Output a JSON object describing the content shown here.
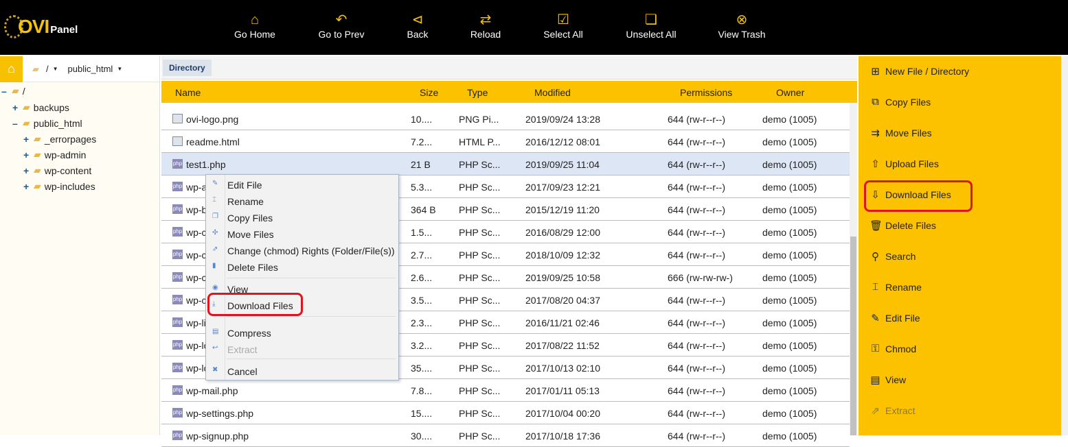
{
  "brand": {
    "logo_text": "OVIPanel"
  },
  "toolbar": [
    {
      "label": "Go Home",
      "icon": "home-icon"
    },
    {
      "label": "Go to Prev",
      "icon": "undo-arrow-icon"
    },
    {
      "label": "Back",
      "icon": "circle-chevron-left-icon"
    },
    {
      "label": "Reload",
      "icon": "reload-icon"
    },
    {
      "label": "Select All",
      "icon": "check-square-icon"
    },
    {
      "label": "Unselect All",
      "icon": "square-icon"
    },
    {
      "label": "View Trash",
      "icon": "trash-x-icon"
    }
  ],
  "breadcrumb": {
    "root": "/",
    "current": "public_html"
  },
  "tree": [
    {
      "label": "/",
      "toggle": "-",
      "level": 0
    },
    {
      "label": "backups",
      "toggle": "+",
      "level": 1
    },
    {
      "label": "public_html",
      "toggle": "-",
      "level": 1
    },
    {
      "label": "_errorpages",
      "toggle": "+",
      "level": 2
    },
    {
      "label": "wp-admin",
      "toggle": "+",
      "level": 2
    },
    {
      "label": "wp-content",
      "toggle": "+",
      "level": 2
    },
    {
      "label": "wp-includes",
      "toggle": "+",
      "level": 2
    }
  ],
  "directory_tab": "Directory",
  "columns": {
    "name": "Name",
    "size": "Size",
    "type": "Type",
    "modified": "Modified",
    "permissions": "Permissions",
    "owner": "Owner"
  },
  "files": [
    {
      "name": "ovi-logo.png",
      "size": "10....",
      "type": "PNG Pi...",
      "modified": "2019/09/24 13:28",
      "permissions": "644 (rw-r--r--)",
      "owner": "demo (1005)",
      "icon": "image"
    },
    {
      "name": "readme.html",
      "size": "7.2...",
      "type": "HTML P...",
      "modified": "2016/12/12 08:01",
      "permissions": "644 (rw-r--r--)",
      "owner": "demo (1005)",
      "icon": "html"
    },
    {
      "name": "test1.php",
      "size": "21 B",
      "type": "PHP Sc...",
      "modified": "2019/09/25 11:04",
      "permissions": "644 (rw-r--r--)",
      "owner": "demo (1005)",
      "icon": "php",
      "selected": true
    },
    {
      "name": "wp-a",
      "size": "5.3...",
      "type": "PHP Sc...",
      "modified": "2017/09/23 12:21",
      "permissions": "644 (rw-r--r--)",
      "owner": "demo (1005)",
      "icon": "php"
    },
    {
      "name": "wp-b",
      "size": "364 B",
      "type": "PHP Sc...",
      "modified": "2015/12/19 11:20",
      "permissions": "644 (rw-r--r--)",
      "owner": "demo (1005)",
      "icon": "php"
    },
    {
      "name": "wp-c",
      "size": "1.5...",
      "type": "PHP Sc...",
      "modified": "2016/08/29 12:00",
      "permissions": "644 (rw-r--r--)",
      "owner": "demo (1005)",
      "icon": "php"
    },
    {
      "name": "wp-c",
      "size": "2.7...",
      "type": "PHP Sc...",
      "modified": "2018/10/09 12:32",
      "permissions": "644 (rw-r--r--)",
      "owner": "demo (1005)",
      "icon": "php"
    },
    {
      "name": "wp-c",
      "size": "2.6...",
      "type": "PHP Sc...",
      "modified": "2019/09/25 10:58",
      "permissions": "666 (rw-rw-rw-)",
      "owner": "demo (1005)",
      "icon": "php"
    },
    {
      "name": "wp-c",
      "size": "3.5...",
      "type": "PHP Sc...",
      "modified": "2017/08/20 04:37",
      "permissions": "644 (rw-r--r--)",
      "owner": "demo (1005)",
      "icon": "php"
    },
    {
      "name": "wp-li",
      "size": "2.3...",
      "type": "PHP Sc...",
      "modified": "2016/11/21 02:46",
      "permissions": "644 (rw-r--r--)",
      "owner": "demo (1005)",
      "icon": "php"
    },
    {
      "name": "wp-lo",
      "size": "3.2...",
      "type": "PHP Sc...",
      "modified": "2017/08/22 11:52",
      "permissions": "644 (rw-r--r--)",
      "owner": "demo (1005)",
      "icon": "php"
    },
    {
      "name": "wp-lo",
      "size": "35....",
      "type": "PHP Sc...",
      "modified": "2017/10/13 02:10",
      "permissions": "644 (rw-r--r--)",
      "owner": "demo (1005)",
      "icon": "php"
    },
    {
      "name": "wp-mail.php",
      "size": "7.8...",
      "type": "PHP Sc...",
      "modified": "2017/01/11 05:13",
      "permissions": "644 (rw-r--r--)",
      "owner": "demo (1005)",
      "icon": "php"
    },
    {
      "name": "wp-settings.php",
      "size": "15....",
      "type": "PHP Sc...",
      "modified": "2017/10/04 00:20",
      "permissions": "644 (rw-r--r--)",
      "owner": "demo (1005)",
      "icon": "php"
    },
    {
      "name": "wp-signup.php",
      "size": "30....",
      "type": "PHP Sc...",
      "modified": "2017/10/18 17:36",
      "permissions": "644 (rw-r--r--)",
      "owner": "demo (1005)",
      "icon": "php"
    }
  ],
  "context_menu": [
    {
      "label": "Edit File",
      "icon": "pencil-icon",
      "glyph": "✎"
    },
    {
      "label": "Rename",
      "icon": "rename-icon",
      "glyph": "⌶"
    },
    {
      "label": "Copy Files",
      "icon": "copy-icon",
      "glyph": "❐"
    },
    {
      "label": "Move Files",
      "icon": "move-icon",
      "glyph": "✣"
    },
    {
      "label": "Change (chmod) Rights (Folder/File(s))",
      "icon": "chmod-icon",
      "glyph": "⇗"
    },
    {
      "label": "Delete Files",
      "icon": "trash-icon",
      "glyph": "▮"
    },
    {
      "label": "View",
      "icon": "eye-icon",
      "glyph": "◉"
    },
    {
      "label": "Download Files",
      "icon": "download-icon",
      "glyph": "⤓",
      "highlighted": true
    },
    {
      "label": "Compress",
      "icon": "compress-icon",
      "glyph": "▤"
    },
    {
      "label": "Extract",
      "icon": "extract-icon",
      "glyph": "↩",
      "disabled": true
    },
    {
      "label": "Cancel",
      "icon": "close-icon",
      "glyph": "✖"
    }
  ],
  "actions": [
    {
      "label": "New File / Directory",
      "icon": "new-file-icon",
      "glyph": "⊞"
    },
    {
      "label": "Copy Files",
      "icon": "copy-icon",
      "glyph": "⧉"
    },
    {
      "label": "Move Files",
      "icon": "move-icon",
      "glyph": "⇉"
    },
    {
      "label": "Upload Files",
      "icon": "upload-icon",
      "glyph": "⇧"
    },
    {
      "label": "Download Files",
      "icon": "download-icon",
      "glyph": "⇩",
      "highlighted": true
    },
    {
      "label": "Delete Files",
      "icon": "trash-icon",
      "glyph": "🗑"
    },
    {
      "label": "Search",
      "icon": "search-icon",
      "glyph": "⚲"
    },
    {
      "label": "Rename",
      "icon": "rename-icon",
      "glyph": "⌶"
    },
    {
      "label": "Edit File",
      "icon": "edit-icon",
      "glyph": "✎"
    },
    {
      "label": "Chmod",
      "icon": "chmod-icon",
      "glyph": "⚿"
    },
    {
      "label": "View",
      "icon": "view-icon",
      "glyph": "▤"
    },
    {
      "label": "Extract",
      "icon": "extract-icon",
      "glyph": "⇗",
      "disabled": true
    }
  ],
  "colors": {
    "accent": "#fcc200",
    "header_bg": "#000000",
    "selected_row": "#dde6f4",
    "highlight_box": "#e0141e"
  }
}
